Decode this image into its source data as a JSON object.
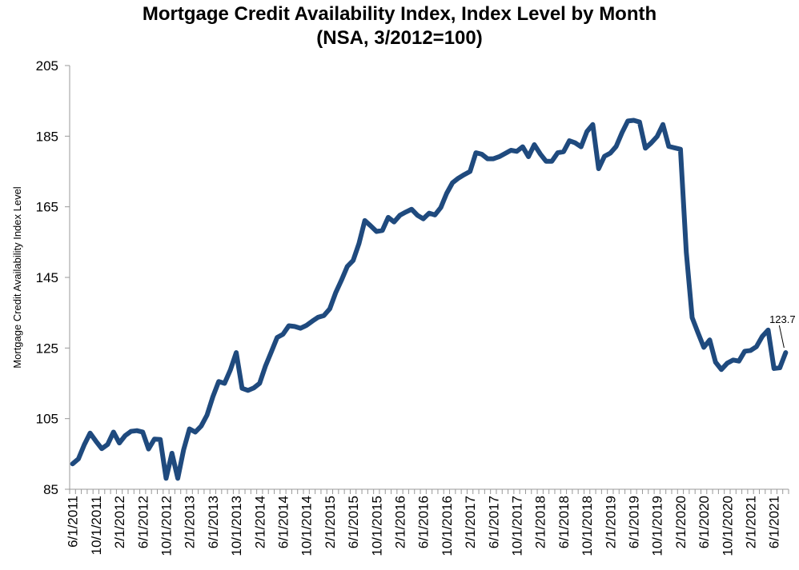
{
  "chart_data": {
    "type": "line",
    "title": "Mortgage Credit Availability Index, Index Level by Month",
    "subtitle": "(NSA, 3/2012=100)",
    "ylabel": "Mortgage Credit Availability Index Level",
    "xlabel": "",
    "ylim": [
      85,
      205
    ],
    "yticks": [
      85,
      105,
      125,
      145,
      165,
      185,
      205
    ],
    "x_start": "6/1/2011",
    "x_end": "9/1/2021",
    "xtick_labels": [
      "6/1/2011",
      "10/1/2011",
      "2/1/2012",
      "6/1/2012",
      "10/1/2012",
      "2/1/2013",
      "6/1/2013",
      "10/1/2013",
      "2/1/2014",
      "6/1/2014",
      "10/1/2014",
      "2/1/2015",
      "6/1/2015",
      "10/1/2015",
      "2/1/2016",
      "6/1/2016",
      "10/1/2016",
      "2/1/2017",
      "6/1/2017",
      "10/1/2017",
      "2/1/2018",
      "6/1/2018",
      "10/1/2018",
      "2/1/2019",
      "6/1/2019",
      "10/1/2019",
      "2/1/2020",
      "6/1/2020",
      "10/1/2020",
      "2/1/2021",
      "6/1/2021"
    ],
    "grid": false,
    "legend": "none",
    "series": [
      {
        "color": "#1f4a7e",
        "values": [
          92.2,
          93.6,
          97.6,
          100.9,
          98.6,
          96.5,
          97.7,
          101.2,
          98.1,
          100.2,
          101.4,
          101.6,
          101.2,
          96.4,
          99.2,
          99.1,
          88.1,
          95.2,
          88.1,
          96.2,
          102.1,
          101.2,
          102.9,
          106.0,
          111.2,
          115.5,
          115.0,
          118.8,
          123.7,
          113.6,
          113.0,
          113.7,
          115.0,
          119.9,
          123.9,
          128.0,
          128.9,
          131.3,
          131.1,
          130.6,
          131.4,
          132.6,
          133.7,
          134.2,
          136.1,
          140.6,
          144.2,
          148.1,
          149.8,
          154.6,
          161.1,
          159.6,
          158.0,
          158.3,
          162.0,
          160.7,
          162.6,
          163.5,
          164.3,
          162.6,
          161.6,
          163.2,
          162.7,
          164.8,
          168.8,
          171.8,
          173.1,
          174.1,
          175.0,
          180.3,
          179.9,
          178.6,
          178.6,
          179.2,
          180.1,
          181.0,
          180.7,
          182.0,
          179.2,
          182.6,
          180.0,
          177.9,
          177.9,
          180.3,
          180.6,
          183.7,
          183.1,
          182.0,
          186.3,
          188.3,
          175.8,
          179.3,
          180.2,
          182.1,
          186.0,
          189.3,
          189.5,
          189.0,
          181.6,
          183.1,
          184.9,
          188.3,
          182.1,
          181.7,
          181.3,
          152.1,
          133.6,
          129.3,
          125.2,
          127.3,
          121.0,
          118.9,
          120.7,
          121.6,
          121.3,
          124.1,
          124.3,
          125.4,
          128.3,
          130.1,
          119.2,
          119.4,
          123.7
        ]
      }
    ],
    "annotations": [
      {
        "label": "123.7",
        "x": "9/1/2021",
        "y": 123.7
      }
    ]
  }
}
